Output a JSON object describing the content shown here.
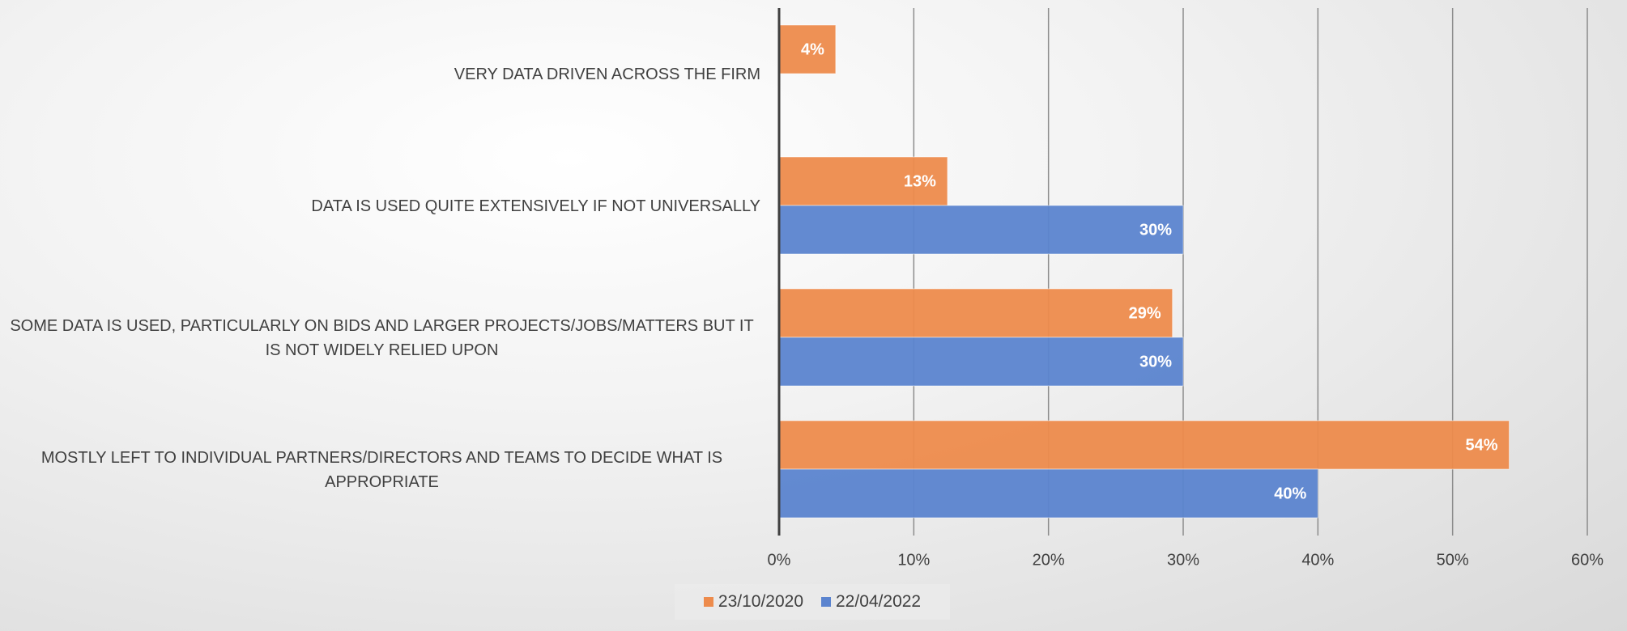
{
  "chart_data": {
    "type": "barh",
    "categories": [
      "VERY DATA DRIVEN ACROSS THE FIRM",
      "DATA IS USED QUITE EXTENSIVELY IF NOT UNIVERSALLY",
      "SOME DATA IS USED, PARTICULARLY ON BIDS AND LARGER PROJECTS/JOBS/MATTERS BUT IT IS NOT WIDELY RELIED UPON",
      "MOSTLY LEFT TO INDIVIDUAL PARTNERS/DIRECTORS AND TEAMS TO DECIDE WHAT IS APPROPRIATE"
    ],
    "series": [
      {
        "name": "23/10/2020",
        "color": "#ed8b4c",
        "values": [
          4.2,
          12.5,
          29.2,
          54.2
        ],
        "value_labels": [
          "4%",
          "13%",
          "29%",
          "54%"
        ]
      },
      {
        "name": "22/04/2022",
        "color": "#5b84cf",
        "values": [
          null,
          30,
          30,
          40
        ],
        "value_labels": [
          null,
          "30%",
          "30%",
          "40%"
        ]
      }
    ],
    "xlim": [
      0,
      60
    ],
    "xticks": [
      {
        "value": 0,
        "label": "0%"
      },
      {
        "value": 10,
        "label": "10%"
      },
      {
        "value": 20,
        "label": "20%"
      },
      {
        "value": 30,
        "label": "30%"
      },
      {
        "value": 40,
        "label": "40%"
      },
      {
        "value": 50,
        "label": "50%"
      },
      {
        "value": 60,
        "label": "60%"
      }
    ],
    "grid": true,
    "legend": "bottom"
  }
}
